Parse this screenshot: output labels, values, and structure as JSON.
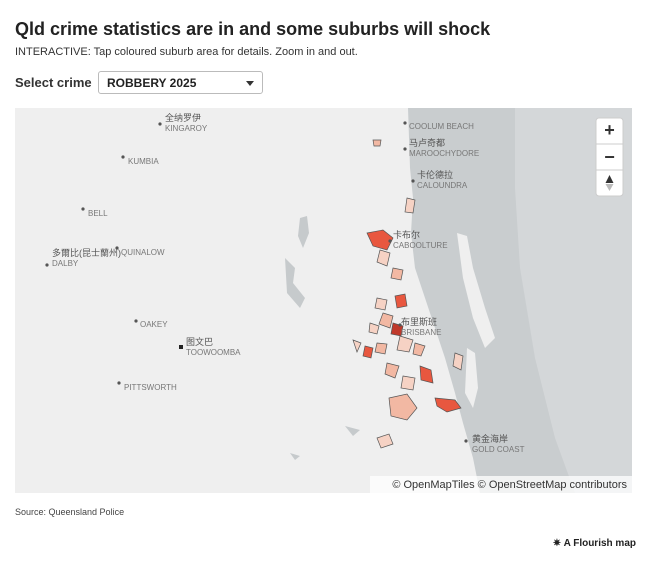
{
  "header": {
    "title": "Qld crime statistics are in and some suburbs will shock",
    "subtitle": "INTERACTIVE: Tap coloured suburb area for details. Zoom in and out."
  },
  "control": {
    "label": "Select crime",
    "selected": "ROBBERY 2025"
  },
  "map": {
    "places": [
      {
        "name": "全纳罗伊",
        "name_en": "KINGAROY"
      },
      {
        "name_en": "COOLUM BEACH"
      },
      {
        "name": "马卢奇都",
        "name_en": "MAROOCHYDORE"
      },
      {
        "name": "卡伦德拉",
        "name_en": "CALOUNDRA"
      },
      {
        "name_en": "KUMBIA"
      },
      {
        "name_en": "BELL"
      },
      {
        "name_en": "QUINALOW"
      },
      {
        "name": "多爾比(昆士蘭州)",
        "name_en": "DALBY"
      },
      {
        "name_en": "OAKEY"
      },
      {
        "name": "图文巴",
        "name_en": "TOOWOOMBA"
      },
      {
        "name_en": "PITTSWORTH"
      },
      {
        "name": "卡布尔",
        "name_en": "CABOOLTURE"
      },
      {
        "name": "布里斯班",
        "name_en": "BRISBANE"
      },
      {
        "name": "黄金海岸",
        "name_en": "GOLD COAST"
      }
    ],
    "attribution": "© OpenMapTiles © OpenStreetMap contributors",
    "zoom_in": "+",
    "zoom_out": "−"
  },
  "footer": {
    "source": "Source: Queensland Police",
    "credit": "A Flourish map"
  }
}
